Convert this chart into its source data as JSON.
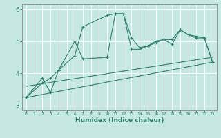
{
  "title": "",
  "xlabel": "Humidex (Indice chaleur)",
  "ylabel": "",
  "bg_color": "#c5e8e2",
  "grid_color": "#ffffff",
  "line_color": "#2e7d6e",
  "xlim": [
    -0.5,
    23.5
  ],
  "ylim": [
    2.85,
    6.15
  ],
  "yticks": [
    3,
    4,
    5,
    6
  ],
  "xtick_labels": [
    "0",
    "1",
    "2",
    "3",
    "4",
    "5",
    "6",
    "7",
    "8",
    "9",
    "10",
    "11",
    "12",
    "13",
    "14",
    "15",
    "16",
    "17",
    "18",
    "19",
    "20",
    "21",
    "22",
    "23"
  ],
  "xtick_positions": [
    0,
    1,
    2,
    3,
    4,
    5,
    6,
    7,
    8,
    9,
    10,
    11,
    12,
    13,
    14,
    15,
    16,
    17,
    18,
    19,
    20,
    21,
    22,
    23
  ],
  "series": [
    {
      "x": [
        0,
        2,
        3,
        4,
        6,
        7,
        10,
        11,
        12,
        13,
        14,
        15,
        16,
        17,
        18,
        19,
        20,
        21,
        22,
        23
      ],
      "y": [
        3.25,
        3.7,
        3.85,
        4.1,
        4.55,
        5.45,
        5.8,
        5.85,
        5.85,
        5.1,
        4.8,
        4.85,
        4.95,
        5.05,
        5.05,
        5.35,
        5.2,
        5.1,
        5.1,
        4.35
      ],
      "marker": true
    },
    {
      "x": [
        0,
        2,
        3,
        4,
        6,
        7,
        10,
        11,
        12,
        13,
        14,
        15,
        16,
        17,
        18,
        19,
        20,
        21,
        22,
        23
      ],
      "y": [
        3.25,
        3.85,
        3.4,
        4.1,
        5.0,
        4.45,
        4.5,
        5.85,
        5.85,
        4.75,
        4.75,
        4.85,
        5.0,
        5.05,
        4.9,
        5.35,
        5.2,
        5.15,
        5.1,
        4.35
      ],
      "marker": true
    },
    {
      "x": [
        0,
        23
      ],
      "y": [
        3.25,
        4.35
      ],
      "marker": false
    },
    {
      "x": [
        0,
        23
      ],
      "y": [
        3.6,
        4.5
      ],
      "marker": false
    }
  ]
}
